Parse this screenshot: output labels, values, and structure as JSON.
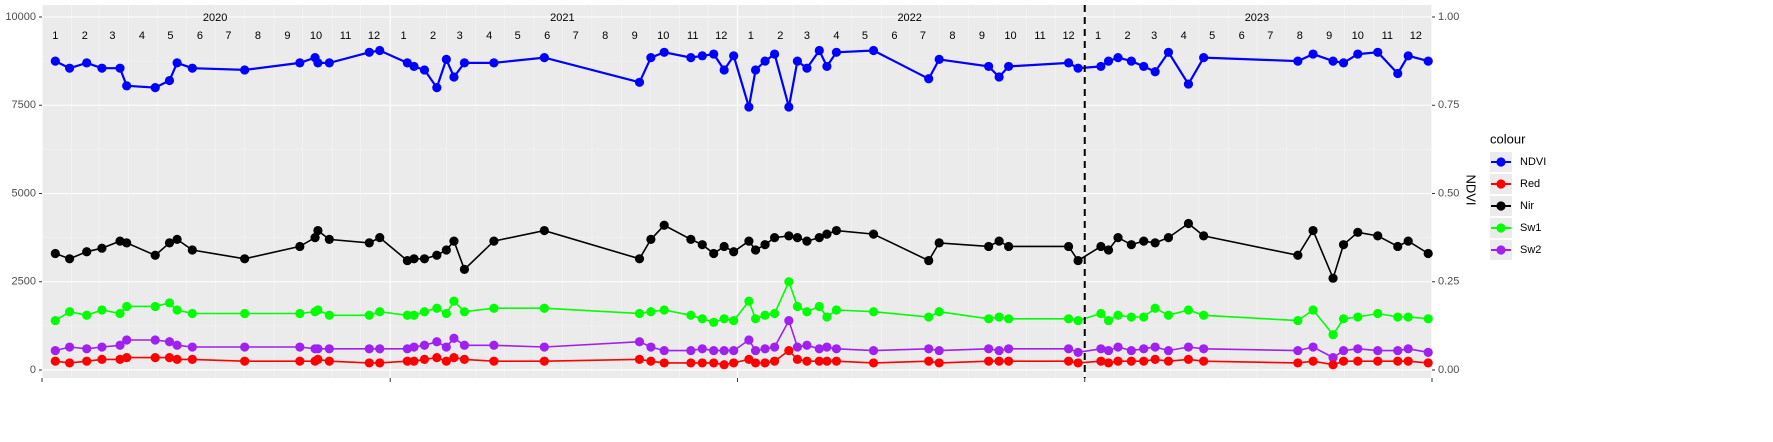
{
  "chart_data": {
    "type": "line",
    "x": [
      "2020-01-15",
      "2020-01-30",
      "2020-02-17",
      "2020-03-04",
      "2020-03-23",
      "2020-03-30",
      "2020-04-29",
      "2020-05-14",
      "2020-05-22",
      "2020-06-07",
      "2020-08-01",
      "2020-09-28",
      "2020-10-14",
      "2020-10-17",
      "2020-10-29",
      "2020-12-10",
      "2020-12-21",
      "2021-01-19",
      "2021-01-26",
      "2021-02-06",
      "2021-02-19",
      "2021-03-01",
      "2021-03-09",
      "2021-03-20",
      "2021-04-20",
      "2021-06-12",
      "2021-09-20",
      "2021-10-02",
      "2021-10-16",
      "2021-11-13",
      "2021-11-25",
      "2021-12-07",
      "2021-12-18",
      "2021-12-28",
      "2022-01-13",
      "2022-01-20",
      "2022-01-30",
      "2022-02-09",
      "2022-02-24",
      "2022-03-05",
      "2022-03-15",
      "2022-03-28",
      "2022-04-05",
      "2022-04-15",
      "2022-05-24",
      "2022-07-21",
      "2022-08-01",
      "2022-09-22",
      "2022-10-03",
      "2022-10-13",
      "2022-12-15",
      "2022-12-25",
      "2023-01-18",
      "2023-01-26",
      "2023-02-05",
      "2023-02-19",
      "2023-03-04",
      "2023-03-16",
      "2023-03-30",
      "2023-04-20",
      "2023-05-06",
      "2023-08-13",
      "2023-08-29",
      "2023-09-19",
      "2023-09-30",
      "2023-10-15",
      "2023-11-05",
      "2023-11-26",
      "2023-12-07",
      "2023-12-28"
    ],
    "series": [
      {
        "name": "NDVI",
        "color": "#0000ff",
        "axis": "y2",
        "values": [
          0.875,
          0.855,
          0.87,
          0.855,
          0.855,
          0.805,
          0.8,
          0.82,
          0.87,
          0.855,
          0.85,
          0.87,
          0.885,
          0.87,
          0.87,
          0.9,
          0.905,
          0.87,
          0.86,
          0.85,
          0.8,
          0.88,
          0.83,
          0.87,
          0.87,
          0.885,
          0.815,
          0.885,
          0.9,
          0.885,
          0.89,
          0.895,
          0.85,
          0.89,
          0.745,
          0.85,
          0.875,
          0.895,
          0.745,
          0.875,
          0.855,
          0.905,
          0.86,
          0.9,
          0.905,
          0.825,
          0.88,
          0.86,
          0.83,
          0.86,
          0.87,
          0.855,
          0.86,
          0.875,
          0.885,
          0.875,
          0.86,
          0.845,
          0.9,
          0.81,
          0.885,
          0.875,
          0.895,
          0.875,
          0.87,
          0.895,
          0.9,
          0.84,
          0.89,
          0.875
        ]
      },
      {
        "name": "Red",
        "color": "#ff0000",
        "values": [
          250,
          200,
          250,
          300,
          300,
          350,
          350,
          350,
          300,
          300,
          250,
          250,
          250,
          300,
          250,
          200,
          200,
          250,
          250,
          300,
          350,
          250,
          350,
          300,
          250,
          250,
          300,
          250,
          200,
          200,
          200,
          200,
          150,
          200,
          300,
          200,
          200,
          250,
          550,
          300,
          250,
          250,
          250,
          250,
          200,
          250,
          200,
          250,
          250,
          250,
          250,
          200,
          250,
          200,
          250,
          250,
          250,
          300,
          250,
          300,
          250,
          200,
          250,
          150,
          250,
          250,
          250,
          250,
          250,
          200
        ]
      },
      {
        "name": "Nir",
        "color": "#000000",
        "values": [
          3300,
          3150,
          3350,
          3450,
          3650,
          3600,
          3250,
          3600,
          3700,
          3400,
          3150,
          3500,
          3750,
          3950,
          3700,
          3600,
          3750,
          3100,
          3150,
          3150,
          3250,
          3400,
          3650,
          2850,
          3650,
          3950,
          3150,
          3700,
          4100,
          3700,
          3550,
          3300,
          3500,
          3350,
          3650,
          3400,
          3550,
          3750,
          3800,
          3750,
          3650,
          3750,
          3850,
          3950,
          3850,
          3100,
          3600,
          3500,
          3650,
          3500,
          3500,
          3100,
          3500,
          3400,
          3750,
          3550,
          3650,
          3600,
          3750,
          4150,
          3800,
          3250,
          3950,
          2600,
          3550,
          3900,
          3800,
          3500,
          3650,
          3300
        ]
      },
      {
        "name": "Sw1",
        "color": "#00ff00",
        "values": [
          1400,
          1650,
          1550,
          1700,
          1600,
          1800,
          1800,
          1900,
          1700,
          1600,
          1600,
          1600,
          1650,
          1700,
          1550,
          1550,
          1650,
          1550,
          1550,
          1650,
          1750,
          1600,
          1950,
          1650,
          1750,
          1750,
          1600,
          1650,
          1700,
          1550,
          1450,
          1350,
          1450,
          1400,
          1950,
          1450,
          1550,
          1600,
          2500,
          1800,
          1650,
          1800,
          1500,
          1700,
          1650,
          1500,
          1650,
          1450,
          1500,
          1450,
          1450,
          1400,
          1600,
          1400,
          1550,
          1500,
          1500,
          1750,
          1550,
          1700,
          1550,
          1400,
          1700,
          1000,
          1450,
          1500,
          1600,
          1500,
          1500,
          1450
        ]
      },
      {
        "name": "Sw2",
        "color": "#a020f0",
        "values": [
          550,
          650,
          600,
          650,
          700,
          850,
          850,
          800,
          700,
          650,
          650,
          650,
          600,
          600,
          600,
          600,
          600,
          600,
          650,
          700,
          800,
          650,
          900,
          700,
          700,
          650,
          800,
          650,
          550,
          550,
          600,
          550,
          550,
          550,
          850,
          550,
          600,
          650,
          1400,
          650,
          700,
          600,
          650,
          600,
          550,
          600,
          550,
          600,
          550,
          600,
          600,
          500,
          600,
          550,
          650,
          550,
          600,
          650,
          550,
          650,
          600,
          550,
          650,
          350,
          550,
          600,
          550,
          550,
          600,
          500
        ]
      }
    ],
    "xlim": [
      "2020-01-01",
      "2024-01-01"
    ],
    "xticks": [
      "2020-01-01",
      "2021-01-01",
      "2022-01-01",
      "2023-01-01",
      "2024-01-01"
    ],
    "ylim": [
      -227,
      10340
    ],
    "yticks": [
      0,
      2500,
      5000,
      7500,
      10000
    ],
    "y2lim": [
      -0.0227,
      1.034
    ],
    "y2ticks": [
      {
        "value": 0,
        "label": "0.00"
      },
      0.25,
      {
        "value": 0.5,
        "label": "0.50"
      },
      0.75,
      {
        "value": 1,
        "label": "1.00"
      }
    ],
    "y2_label": "NDVI",
    "vline": "2023-01-01",
    "year_labels": [
      "2020",
      "2021",
      "2022",
      "2023"
    ],
    "month_labels": [
      "1",
      "2",
      "3",
      "4",
      "5",
      "6",
      "7",
      "8",
      "9",
      "10",
      "11",
      "12"
    ],
    "legend_title": "colour",
    "legend": "right",
    "grid": true
  }
}
